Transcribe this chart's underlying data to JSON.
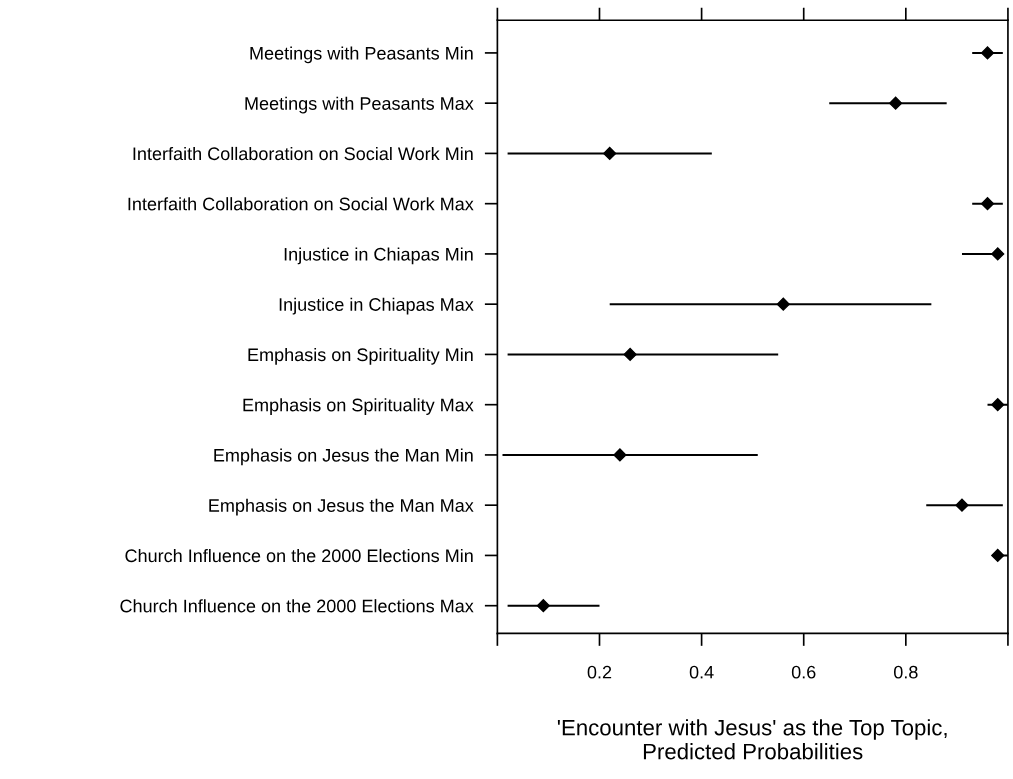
{
  "chart_data": {
    "type": "scatter",
    "orientation": "horizontal",
    "xlabel": "'Encounter with Jesus' as the Top Topic,\nPredicted Probabilities",
    "categories": [
      "Meetings with Peasants Min",
      "Meetings with Peasants Max",
      "Interfaith Collaboration on Social Work Min",
      "Interfaith Collaboration on Social Work Max",
      "Injustice in Chiapas Min",
      "Injustice in Chiapas Max",
      "Emphasis on Spirituality Min",
      "Emphasis on Spirituality Max",
      "Emphasis on Jesus the Man Min",
      "Emphasis on Jesus the Man Max",
      "Church Influence on the 2000 Elections Min",
      "Church Influence on the 2000 Elections Max"
    ],
    "values": [
      0.96,
      0.78,
      0.22,
      0.96,
      0.98,
      0.56,
      0.26,
      0.98,
      0.24,
      0.91,
      0.98,
      0.09
    ],
    "errors": [
      [
        0.93,
        0.99
      ],
      [
        0.65,
        0.88
      ],
      [
        0.02,
        0.42
      ],
      [
        0.93,
        0.99
      ],
      [
        0.91,
        0.99
      ],
      [
        0.22,
        0.85
      ],
      [
        0.02,
        0.55
      ],
      [
        0.96,
        1.0
      ],
      [
        0.01,
        0.51
      ],
      [
        0.84,
        0.99
      ],
      [
        0.97,
        1.0
      ],
      [
        0.02,
        0.2
      ]
    ],
    "color": "#000000",
    "marker": "diamond",
    "xlim": [
      0,
      1
    ],
    "xticks": [
      {
        "value": 0,
        "label": null
      },
      0.2,
      0.4,
      0.6,
      0.8,
      {
        "value": 1,
        "label": null
      }
    ],
    "grid": false,
    "legend": false
  }
}
